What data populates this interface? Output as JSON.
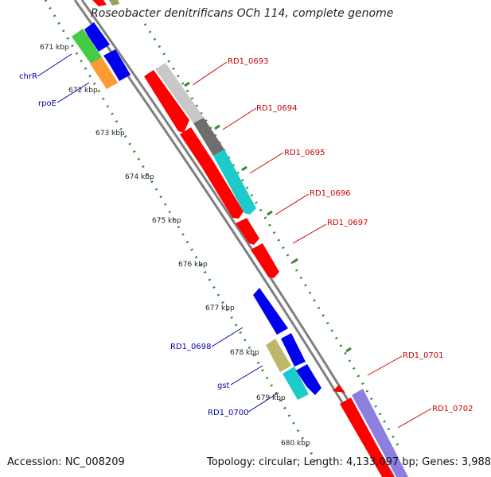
{
  "title": "Roseobacter denitrificans OCh 114, complete genome",
  "accession": "Accession: NC_008209",
  "topology": "Topology: circular; Length: 4,133,097 bp; Genes: 3,988",
  "colors": {
    "backbone": "#888888",
    "tick_green": "#2e8b2e",
    "forward_label": "#cc0000",
    "reverse_label": "#0000aa",
    "gene_red": "#ff0000",
    "gene_blue": "#0000ee",
    "gene_lightgray": "#c8c8c8",
    "gene_darkgray": "#6e6e6e",
    "gene_cyan": "#1ecbcb",
    "gene_khaki": "#bdb76b",
    "gene_green": "#44cc44",
    "gene_orange": "#ff9933",
    "gene_lavender": "#8d7fe0"
  },
  "kbp_ticks": [
    "671 kbp",
    "672 kbp",
    "673 kbp",
    "674 kbp",
    "675 kbp",
    "676 kbp",
    "677 kbp",
    "678 kbp",
    "679 kbp",
    "680 kbp"
  ],
  "gene_labels": {
    "rd1_0693": "RD1_0693",
    "rd1_0694": "RD1_0694",
    "rd1_0695": "RD1_0695",
    "rd1_0696": "RD1_0696",
    "rd1_0697": "RD1_0697",
    "rd1_0701": "RD1_0701",
    "rd1_0702": "RD1_0702",
    "chrR": "chrR",
    "rpoE": "rpoE",
    "rd1_0698": "RD1_0698",
    "gst": "gst",
    "rd1_0700": "RD1_0700"
  }
}
